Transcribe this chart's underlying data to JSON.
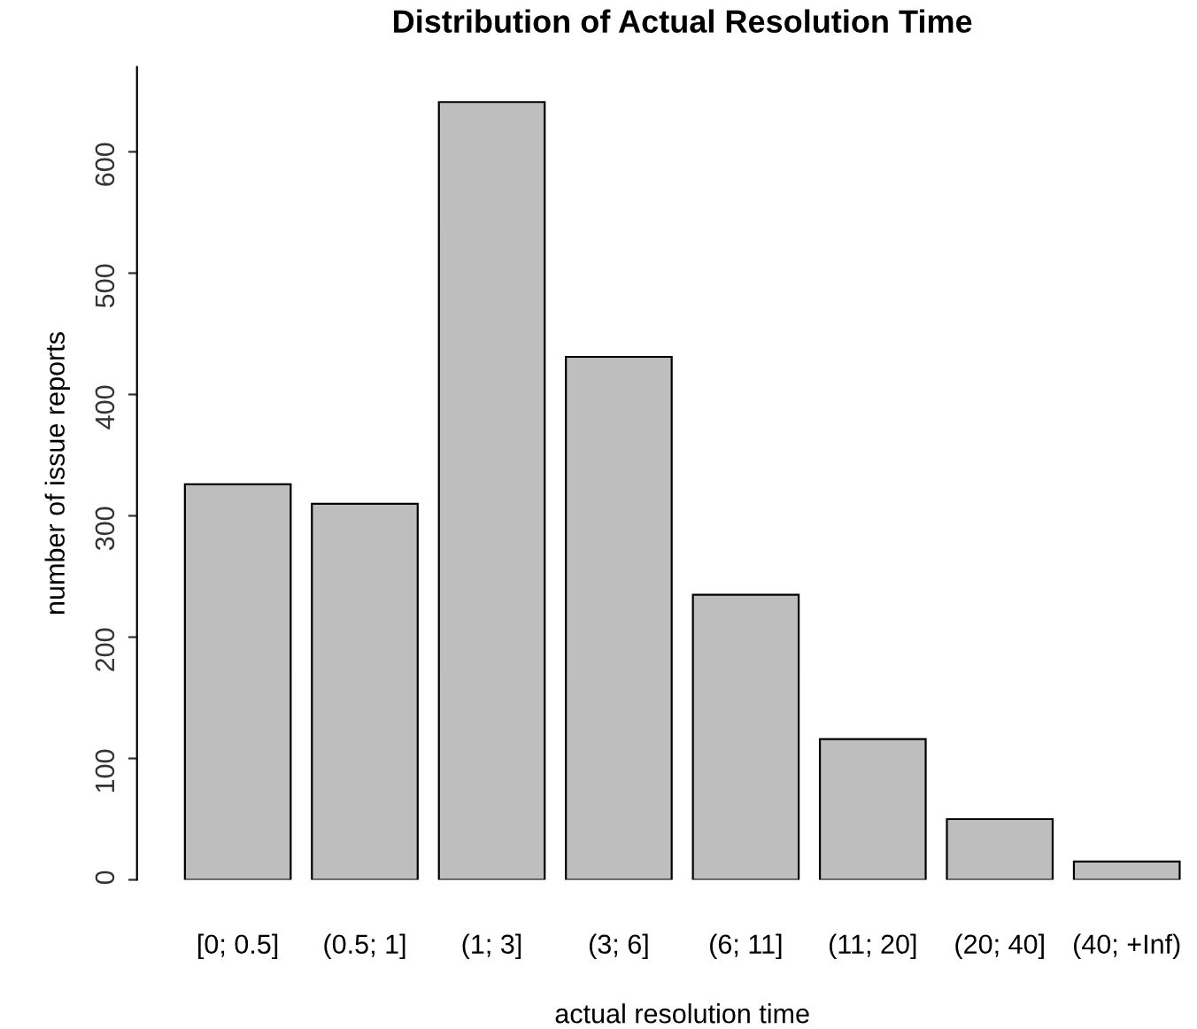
{
  "chart_data": {
    "type": "bar",
    "title": "Distribution of Actual Resolution Time",
    "xlabel": "actual resolution time",
    "ylabel": "number of issue reports",
    "categories": [
      "[0; 0.5]",
      "(0.5; 1]",
      "(1; 3]",
      "(3; 6]",
      "(6; 11]",
      "(11; 20]",
      "(20; 40]",
      "(40; +Inf)"
    ],
    "values": [
      326,
      310,
      641,
      431,
      235,
      116,
      50,
      15
    ],
    "color": "#bebebe",
    "ylim": [
      0,
      670
    ],
    "yticks": [
      0,
      100,
      200,
      300,
      400,
      500,
      600
    ],
    "grid": false
  }
}
